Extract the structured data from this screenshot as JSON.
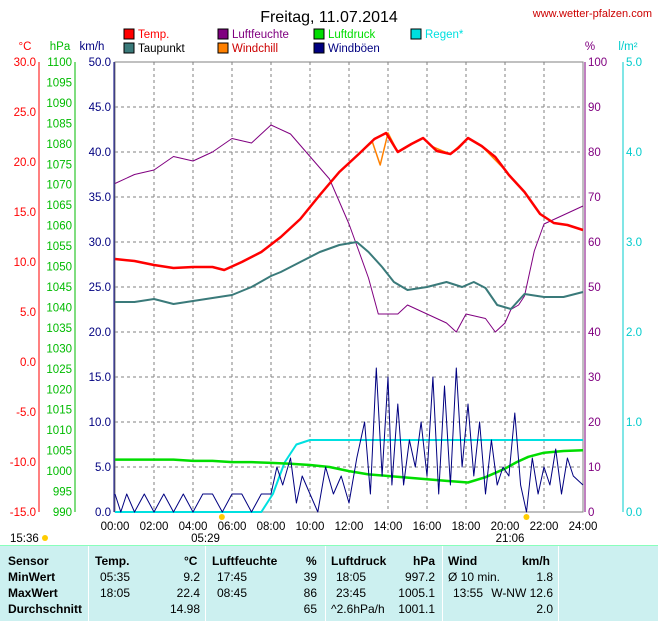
{
  "header": {
    "title": "Freitag, 11.07.2014",
    "site": "www.wetter-pfalzen.com"
  },
  "colors": {
    "temp": "#ff0000",
    "taupunkt": "#3a7a7a",
    "luftfeuchte": "#800080",
    "windchill": "#ff8000",
    "luftdruck": "#00dd00",
    "windboeen": "#000080",
    "regen": "#00e0e0",
    "grid": "#808080"
  },
  "chart_data": {
    "type": "line",
    "title": "Freitag, 11.07.2014",
    "legend": [
      {
        "key": "temp",
        "label": "Temp."
      },
      {
        "key": "taupunkt",
        "label": "Taupunkt"
      },
      {
        "key": "luftfeuchte",
        "label": "Luftfeuchte"
      },
      {
        "key": "windchill",
        "label": "Windchill"
      },
      {
        "key": "luftdruck",
        "label": "Luftdruck"
      },
      {
        "key": "windboeen",
        "label": "Windböen"
      },
      {
        "key": "regen",
        "label": "Regen*"
      }
    ],
    "x_range": [
      0,
      24
    ],
    "x_ticks": [
      "00:00",
      "02:00",
      "04:00",
      "06:00",
      "08:00",
      "10:00",
      "12:00",
      "14:00",
      "16:00",
      "18:00",
      "20:00",
      "22:00",
      "24:00"
    ],
    "axes": {
      "celsius": {
        "unit": "°C",
        "range": [
          -15,
          30
        ],
        "ticks": [
          "30.0",
          "25.0",
          "20.0",
          "15.0",
          "10.0",
          "5.0",
          "0.0",
          "-5.0",
          "-10.0",
          "-15.0"
        ]
      },
      "hpa": {
        "unit": "hPa",
        "range": [
          990,
          1100
        ],
        "ticks": [
          "1100",
          "1095",
          "1090",
          "1085",
          "1080",
          "1075",
          "1070",
          "1065",
          "1060",
          "1055",
          "1050",
          "1045",
          "1040",
          "1035",
          "1030",
          "1025",
          "1020",
          "1015",
          "1010",
          "1005",
          "1000",
          "995",
          "990"
        ]
      },
      "kmh": {
        "unit": "km/h",
        "range": [
          0,
          50
        ],
        "ticks": [
          "50.0",
          "45.0",
          "40.0",
          "35.0",
          "30.0",
          "25.0",
          "20.0",
          "15.0",
          "10.0",
          "5.0",
          "0.0"
        ]
      },
      "percent": {
        "unit": "%",
        "range": [
          0,
          100
        ],
        "ticks": [
          "100",
          "90",
          "80",
          "70",
          "60",
          "50",
          "40",
          "30",
          "20",
          "10",
          "0"
        ]
      },
      "rain": {
        "unit": "l/m²",
        "range": [
          0,
          5
        ],
        "ticks": [
          "5.0",
          "4.0",
          "3.0",
          "2.0",
          "1.0",
          "0.0"
        ]
      }
    },
    "sun_markers": [
      {
        "x": 5.48,
        "label": "05:29"
      },
      {
        "x": 21.1,
        "label": "21:06"
      }
    ],
    "sunrise_side": "15:36",
    "series": [
      {
        "name": "Temp.",
        "key": "temp",
        "axis": "celsius",
        "x": [
          0,
          1,
          2,
          3,
          4,
          5,
          5.6,
          6.5,
          7.5,
          8.5,
          9.5,
          10.5,
          11.5,
          12.5,
          13.3,
          13.9,
          14.5,
          15.2,
          15.8,
          16.5,
          17.2,
          17.6,
          18.1,
          18.8,
          19.5,
          20.2,
          21,
          21.8,
          22.5,
          23.2,
          24
        ],
        "y": [
          10.3,
          10.1,
          9.7,
          9.4,
          9.5,
          9.5,
          9.2,
          10.0,
          11.0,
          12.5,
          14.3,
          16.7,
          19.0,
          20.8,
          22.3,
          22.9,
          21.0,
          21.8,
          22.4,
          21.1,
          20.8,
          21.4,
          22.4,
          21.6,
          20.5,
          18.7,
          17.0,
          14.8,
          13.9,
          13.7,
          13.2
        ]
      },
      {
        "name": "Taupunkt",
        "key": "taupunkt",
        "axis": "celsius",
        "x": [
          0,
          1,
          2,
          3,
          4,
          5,
          6,
          7,
          8,
          8.5,
          9.5,
          10.5,
          11.5,
          12.4,
          13.0,
          13.7,
          14.3,
          15.0,
          16.0,
          17.0,
          17.8,
          18.4,
          19.0,
          19.6,
          20.3,
          21.0,
          22.0,
          23.0,
          24
        ],
        "y": [
          6.0,
          6.0,
          6.3,
          5.8,
          6.1,
          6.4,
          6.7,
          7.5,
          8.6,
          9.0,
          10.0,
          11.0,
          11.7,
          12.0,
          11.0,
          9.5,
          8.0,
          7.2,
          7.5,
          8.0,
          7.5,
          8.0,
          7.4,
          5.7,
          5.3,
          6.8,
          6.5,
          6.5,
          7.0
        ]
      },
      {
        "name": "Luftfeuchte",
        "key": "luftfeuchte",
        "axis": "percent",
        "x": [
          0,
          1,
          2,
          3,
          4,
          5,
          6,
          7,
          8,
          9,
          10,
          11,
          12,
          12.5,
          13,
          13.5,
          14,
          14.5,
          15,
          16,
          17,
          17.5,
          18,
          19,
          19.5,
          20,
          20.3,
          20.7,
          21,
          21.5,
          22,
          23,
          24
        ],
        "y": [
          73,
          75,
          76,
          79,
          78,
          80,
          83,
          82,
          86,
          84,
          79,
          74,
          64,
          58,
          52,
          44,
          44,
          44,
          46,
          44,
          42,
          40,
          44,
          43,
          40,
          42,
          45,
          46,
          48,
          58,
          64,
          66,
          68
        ]
      },
      {
        "name": "Windchill",
        "key": "windchill",
        "axis": "celsius",
        "x": [
          12.5,
          13.2,
          13.6,
          14,
          14.5,
          15.2,
          15.8,
          16.2,
          16.8,
          17.2,
          18.1,
          18.8,
          19.4,
          20.0
        ],
        "y": [
          20.8,
          22.0,
          19.7,
          22.9,
          21.0,
          21.8,
          22.4,
          21.6,
          21.1,
          20.8,
          22.4,
          21.6,
          20.4,
          19.2
        ]
      },
      {
        "name": "Luftdruck",
        "key": "luftdruck",
        "axis": "hpa",
        "x": [
          0,
          1,
          2,
          3,
          4,
          5,
          6,
          7,
          8,
          9,
          10,
          11,
          12,
          13,
          14,
          15,
          16,
          17,
          17.6,
          18.1,
          19,
          20,
          20.6,
          21.2,
          22,
          23,
          24
        ],
        "y": [
          1002.8,
          1002.8,
          1002.8,
          1002.8,
          1002.5,
          1002.5,
          1002.2,
          1002.2,
          1002.0,
          1001.8,
          1001.5,
          1001.0,
          1000.0,
          999.2,
          998.8,
          998.4,
          998.0,
          997.6,
          997.4,
          997.2,
          998.5,
          1000.6,
          1002.2,
          1003.5,
          1004.5,
          1004.9,
          1005.1
        ]
      },
      {
        "name": "Windböen",
        "key": "windboeen",
        "axis": "kmh",
        "x": [
          0,
          0.3,
          0.6,
          1,
          1.5,
          2,
          2.5,
          3,
          3.5,
          4,
          4.5,
          5,
          5.5,
          6,
          6.5,
          7,
          7.5,
          8,
          8.3,
          8.6,
          9,
          9.3,
          9.6,
          10,
          10.4,
          10.8,
          11.2,
          11.6,
          12,
          12.4,
          12.8,
          13.1,
          13.4,
          13.7,
          14,
          14.2,
          14.5,
          14.8,
          15.1,
          15.4,
          15.7,
          16,
          16.3,
          16.6,
          16.9,
          17.2,
          17.5,
          17.8,
          18.1,
          18.4,
          18.7,
          19,
          19.3,
          19.6,
          19.9,
          20.2,
          20.5,
          20.8,
          21.1,
          21.4,
          21.7,
          22,
          22.3,
          22.6,
          22.9,
          23.2,
          23.5,
          24
        ],
        "y": [
          2,
          0,
          2,
          0,
          2,
          0,
          2,
          0,
          2,
          0,
          2,
          2,
          0,
          2,
          2,
          0,
          2,
          2,
          5,
          3,
          6,
          1,
          4,
          2,
          0,
          5,
          2,
          4,
          1,
          6,
          10,
          2,
          16,
          4,
          15,
          3,
          12,
          3,
          8,
          5,
          10,
          4,
          15,
          2,
          14,
          3,
          16,
          5,
          12,
          4,
          10,
          2,
          8,
          3,
          5,
          4,
          11,
          3,
          0,
          6,
          2,
          5,
          3,
          7,
          2,
          6,
          4,
          3
        ]
      },
      {
        "name": "Regen*",
        "key": "regen",
        "axis": "rain",
        "x": [
          0,
          7.5,
          8.1,
          8.7,
          9.3,
          10,
          24
        ],
        "y": [
          0,
          0,
          0.2,
          0.55,
          0.75,
          0.8,
          0.8
        ]
      }
    ]
  },
  "stats": {
    "headers": {
      "sensor": "Sensor",
      "temp": "Temp.",
      "temp_unit": "°C",
      "feuchte": "Luftfeuchte",
      "feuchte_unit": "%",
      "druck": "Luftdruck",
      "druck_unit": "hPa",
      "wind": "Wind",
      "wind_unit": "km/h"
    },
    "rows": [
      {
        "label": "MinWert",
        "temp_time": "05:35",
        "temp_val": "9.2",
        "feuchte_time": "17:45",
        "feuchte_val": "39",
        "druck_time": "18:05",
        "druck_val": "997.2",
        "wind_time": "Ø 10 min.",
        "wind_val": "1.8"
      },
      {
        "label": "MaxWert",
        "temp_time": "18:05",
        "temp_val": "22.4",
        "feuchte_time": "08:45",
        "feuchte_val": "86",
        "druck_time": "23:45",
        "druck_val": "1005.1",
        "wind_time": "13:55",
        "wind_val": "W-NW 12.6"
      },
      {
        "label": "Durchschnitt",
        "temp_time": "",
        "temp_val": "14.98",
        "feuchte_time": "",
        "feuchte_val": "65",
        "druck_time": "^2.6hPa/h",
        "druck_val": "1001.1",
        "wind_time": "",
        "wind_val": "2.0"
      }
    ]
  }
}
